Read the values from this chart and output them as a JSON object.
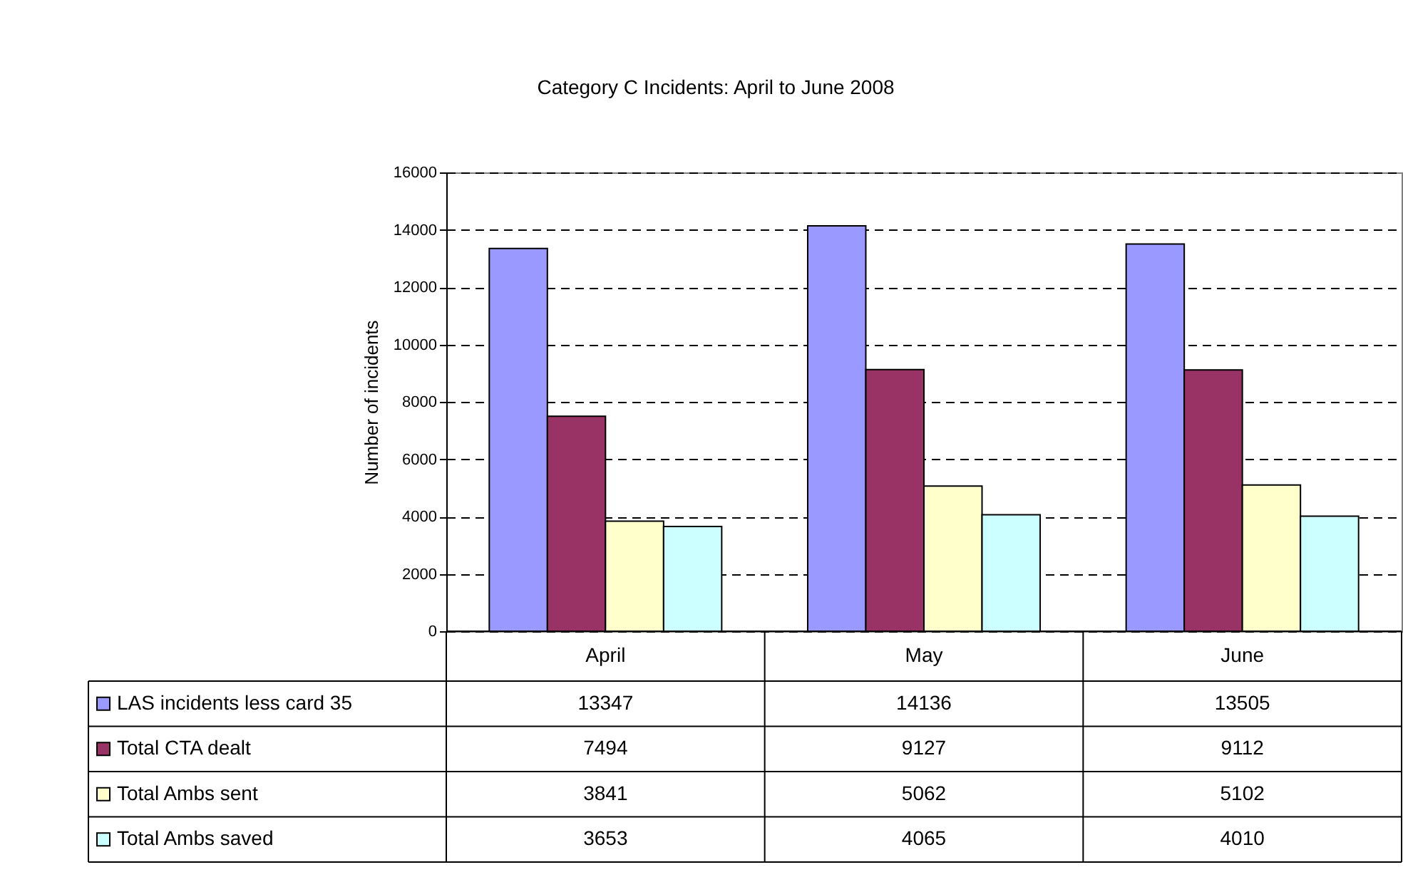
{
  "chart_data": {
    "type": "bar",
    "title": "Category C Incidents: April to June 2008",
    "ylabel": "Number of incidents",
    "categories": [
      "April",
      "May",
      "June"
    ],
    "series": [
      {
        "name": "LAS incidents less card 35",
        "color": "#9999ff",
        "values": [
          13347,
          14136,
          13505
        ]
      },
      {
        "name": "Total CTA dealt",
        "color": "#993366",
        "values": [
          7494,
          9127,
          9112
        ]
      },
      {
        "name": "Total Ambs sent",
        "color": "#ffffcc",
        "values": [
          3841,
          5062,
          5102
        ]
      },
      {
        "name": "Total Ambs saved",
        "color": "#ccffff",
        "values": [
          3653,
          4065,
          4010
        ]
      }
    ],
    "ylim": [
      0,
      16000
    ],
    "yticks": [
      0,
      2000,
      4000,
      6000,
      8000,
      10000,
      12000,
      14000,
      16000
    ],
    "grid": "y",
    "legend": "bottom",
    "data_labels": true
  }
}
